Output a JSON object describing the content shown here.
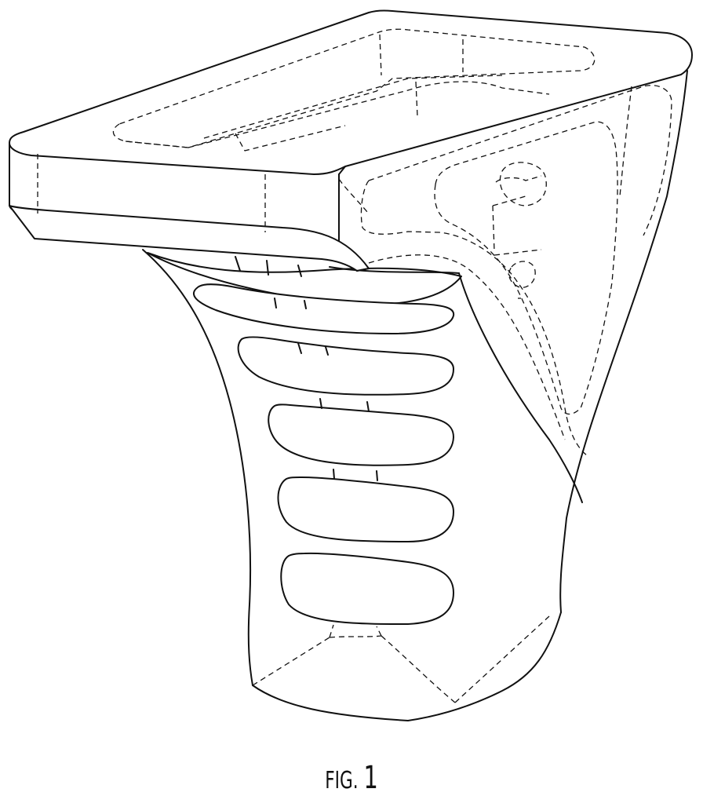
{
  "figure": {
    "caption_prefix": "FIG.",
    "caption_number": "1"
  },
  "colors": {
    "line": "#111111",
    "background": "#ffffff"
  }
}
